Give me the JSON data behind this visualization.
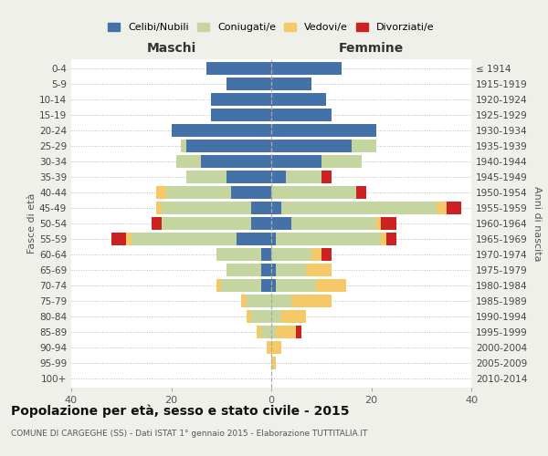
{
  "age_groups": [
    "0-4",
    "5-9",
    "10-14",
    "15-19",
    "20-24",
    "25-29",
    "30-34",
    "35-39",
    "40-44",
    "45-49",
    "50-54",
    "55-59",
    "60-64",
    "65-69",
    "70-74",
    "75-79",
    "80-84",
    "85-89",
    "90-94",
    "95-99",
    "100+"
  ],
  "birth_years": [
    "2010-2014",
    "2005-2009",
    "2000-2004",
    "1995-1999",
    "1990-1994",
    "1985-1989",
    "1980-1984",
    "1975-1979",
    "1970-1974",
    "1965-1969",
    "1960-1964",
    "1955-1959",
    "1950-1954",
    "1945-1949",
    "1940-1944",
    "1935-1939",
    "1930-1934",
    "1925-1929",
    "1920-1924",
    "1915-1919",
    "≤ 1914"
  ],
  "male": {
    "celibi": [
      13,
      9,
      12,
      12,
      20,
      17,
      14,
      9,
      8,
      4,
      4,
      7,
      2,
      2,
      2,
      0,
      0,
      0,
      0,
      0,
      0
    ],
    "coniugati": [
      0,
      0,
      0,
      0,
      0,
      1,
      5,
      8,
      13,
      18,
      18,
      21,
      9,
      7,
      8,
      5,
      4,
      2,
      0,
      0,
      0
    ],
    "vedovi": [
      0,
      0,
      0,
      0,
      0,
      0,
      0,
      0,
      2,
      1,
      0,
      1,
      0,
      0,
      1,
      1,
      1,
      1,
      1,
      0,
      0
    ],
    "divorziati": [
      0,
      0,
      0,
      0,
      0,
      0,
      0,
      0,
      0,
      0,
      2,
      3,
      0,
      0,
      0,
      0,
      0,
      0,
      0,
      0,
      0
    ]
  },
  "female": {
    "nubili": [
      14,
      8,
      11,
      12,
      21,
      16,
      10,
      3,
      0,
      2,
      4,
      1,
      0,
      1,
      1,
      0,
      0,
      0,
      0,
      0,
      0
    ],
    "coniugate": [
      0,
      0,
      0,
      0,
      0,
      5,
      8,
      7,
      17,
      31,
      17,
      21,
      8,
      6,
      8,
      4,
      2,
      1,
      0,
      0,
      0
    ],
    "vedove": [
      0,
      0,
      0,
      0,
      0,
      0,
      0,
      0,
      0,
      2,
      1,
      1,
      2,
      5,
      6,
      8,
      5,
      4,
      2,
      1,
      0
    ],
    "divorziate": [
      0,
      0,
      0,
      0,
      0,
      0,
      0,
      2,
      2,
      3,
      3,
      2,
      2,
      0,
      0,
      0,
      0,
      1,
      0,
      0,
      0
    ]
  },
  "colors": {
    "celibi_nubili": "#4472a8",
    "coniugati": "#c5d5a0",
    "vedovi": "#f5c967",
    "divorziati": "#cc2222"
  },
  "xlim": 40,
  "title": "Popolazione per età, sesso e stato civile - 2015",
  "subtitle": "COMUNE DI CARGEGHE (SS) - Dati ISTAT 1° gennaio 2015 - Elaborazione TUTTITALIA.IT",
  "xlabel_left": "Maschi",
  "xlabel_right": "Femmine",
  "ylabel_left": "Fasce di età",
  "ylabel_right": "Anni di nascita",
  "bg_color": "#f0f0eb",
  "plot_bg_color": "#ffffff"
}
